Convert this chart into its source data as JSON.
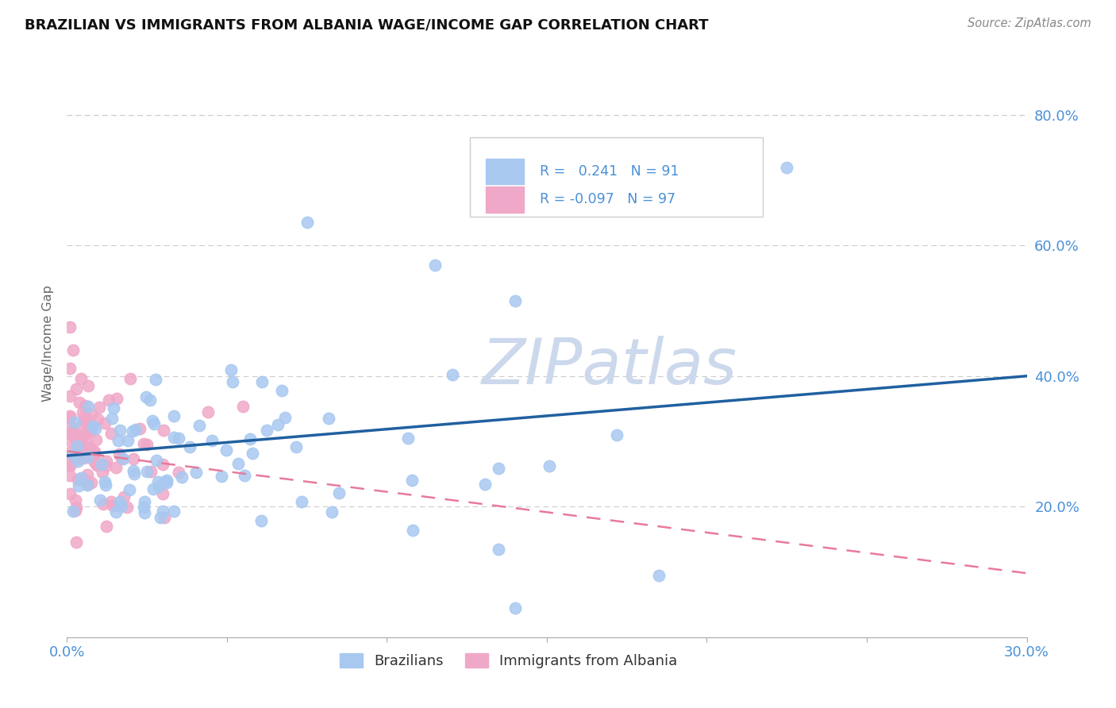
{
  "title": "BRAZILIAN VS IMMIGRANTS FROM ALBANIA WAGE/INCOME GAP CORRELATION CHART",
  "source": "Source: ZipAtlas.com",
  "ylabel": "Wage/Income Gap",
  "brazil_color": "#a8c8f0",
  "albania_color": "#f0a8c8",
  "brazil_line_color": "#2060a0",
  "albania_line_color": "#e87a9a",
  "brazil_scatter_fill": "#a8c8f0",
  "albania_scatter_fill": "#f0a8c8",
  "tick_color": "#4a90d9",
  "watermark_color": "#ccd8ec",
  "legend_text_color": "#4a90d9",
  "legend_label_color": "#333333",
  "xlim": [
    0.0,
    0.3
  ],
  "ylim": [
    0.0,
    0.9
  ],
  "yticks": [
    0.2,
    0.4,
    0.6,
    0.8
  ],
  "ytick_labels": [
    "20.0%",
    "40.0%",
    "60.0%",
    "80.0%"
  ],
  "brazil_trend_y0": 0.278,
  "brazil_trend_y1": 0.4,
  "albania_trend_y0": 0.285,
  "albania_trend_y1": 0.098
}
